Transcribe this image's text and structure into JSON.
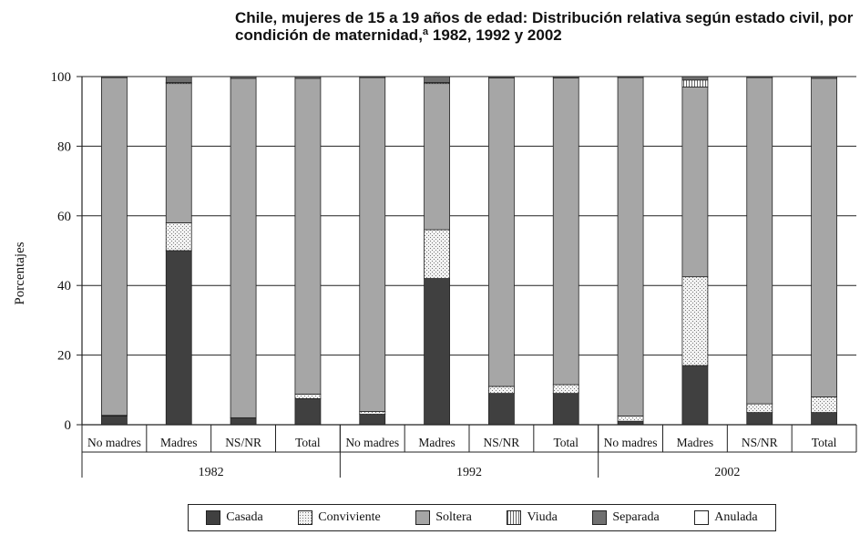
{
  "chart_data": {
    "type": "bar",
    "stacked": true,
    "title": "Chile, mujeres de 15 a 19 años de edad: Distribución relativa según estado civil, por condición de maternidad,ª 1982, 1992 y 2002",
    "ylabel": "Porcentajes",
    "ylim": [
      0,
      100
    ],
    "yticks": [
      0,
      20,
      40,
      60,
      80,
      100
    ],
    "grid": true,
    "legend_position": "bottom",
    "groups": [
      "1982",
      "1992",
      "2002"
    ],
    "categories": [
      "No madres",
      "Madres",
      "NS/NR",
      "Total"
    ],
    "series": [
      {
        "name": "Casada",
        "color": "#404040",
        "values": [
          [
            2.5,
            50,
            2,
            7.5
          ],
          [
            3,
            42,
            9,
            9
          ],
          [
            1,
            17,
            3.5,
            3.5
          ]
        ]
      },
      {
        "name": "Conviviente",
        "color": "#e8e8e8",
        "pattern": "dots",
        "values": [
          [
            0.2,
            8,
            0,
            1.3
          ],
          [
            0.8,
            14,
            2,
            2.5
          ],
          [
            1.5,
            25.5,
            2.5,
            4.5
          ]
        ]
      },
      {
        "name": "Soltera",
        "color": "#a6a6a6",
        "values": [
          [
            97,
            40,
            97.5,
            90.7
          ],
          [
            95.9,
            42,
            88.6,
            88.1
          ],
          [
            97.2,
            54.5,
            93.7,
            91.5
          ]
        ]
      },
      {
        "name": "Viuda",
        "color": "#ffffff",
        "pattern": "vlines",
        "values": [
          [
            0,
            0.3,
            0,
            0
          ],
          [
            0,
            0.3,
            0,
            0
          ],
          [
            0,
            2,
            0,
            0
          ]
        ]
      },
      {
        "name": "Separada",
        "color": "#707070",
        "values": [
          [
            0.3,
            1.7,
            0.5,
            0.5
          ],
          [
            0.3,
            1.7,
            0.4,
            0.4
          ],
          [
            0.3,
            1,
            0.3,
            0.5
          ]
        ]
      },
      {
        "name": "Anulada",
        "color": "#ffffff",
        "values": [
          [
            0,
            0,
            0,
            0
          ],
          [
            0,
            0,
            0,
            0
          ],
          [
            0,
            0,
            0,
            0
          ]
        ]
      }
    ]
  }
}
